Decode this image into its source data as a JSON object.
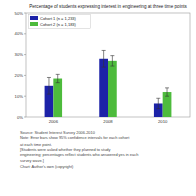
{
  "chart_data": {
    "type": "bar",
    "title": "Percentage of students expressing interest in engineering at three time points",
    "categories": [
      "2006",
      "2008",
      "2010"
    ],
    "series": [
      {
        "name": "Cohort 1 (n = 1,233)",
        "color": "#1c22a8",
        "values": [
          15,
          28,
          6.5
        ],
        "errors": [
          4,
          4,
          2.5
        ]
      },
      {
        "name": "Cohort 2 (n = 1,183)",
        "color": "#4dbb3c",
        "values": [
          18.5,
          27,
          12
        ],
        "errors": [
          2,
          2.5,
          2
        ]
      }
    ],
    "ylim": [
      0,
      50
    ],
    "yticks": [
      {
        "value": 0,
        "label": "0%"
      },
      {
        "value": 10,
        "label": "10%"
      },
      {
        "value": 20,
        "label": "20%"
      },
      {
        "value": 30,
        "label": "30%"
      },
      {
        "value": 40,
        "label": "40%"
      },
      {
        "value": 50,
        "label": "50%"
      }
    ],
    "grid": false,
    "legend": "top-left",
    "annotations": [
      "Source: Student Interest Survey 2006-2010",
      "Note: Error bars show 95% confidence intervals for each cohort",
      "at each time point.",
      "[Students were asked whether they planned to study",
      "engineering; percentages reflect students who answered yes in each",
      "survey wave.]",
      "Chart: Author's own (copyright)"
    ]
  }
}
